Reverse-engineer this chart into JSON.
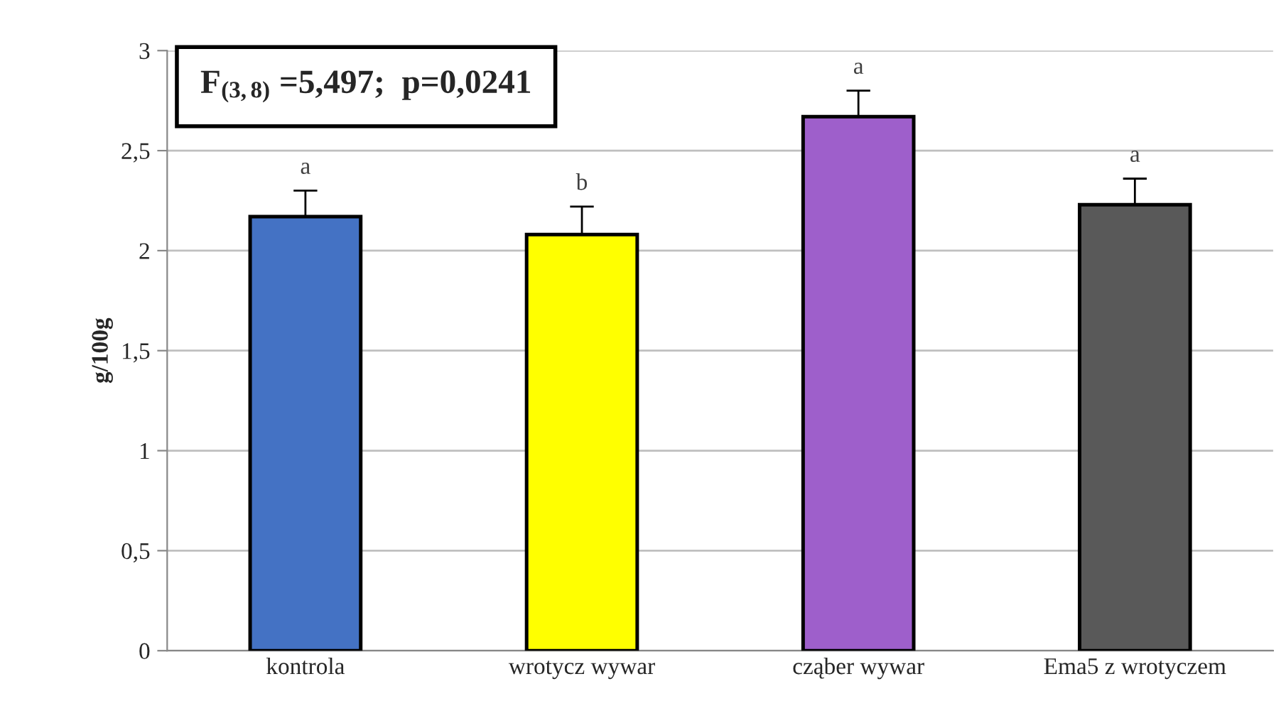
{
  "chart_data": {
    "type": "bar",
    "ylabel": "g/100g",
    "categories": [
      "kontrola",
      "wrotycz wywar",
      "cząber wywar",
      "Ema5 z wrotyczem"
    ],
    "values": [
      2.17,
      2.08,
      2.67,
      2.23
    ],
    "colors": [
      "#4472c4",
      "#ffff00",
      "#9e5fcb",
      "#595959"
    ],
    "errors": [
      [
        2.17,
        2.3
      ],
      [
        2.08,
        2.22
      ],
      [
        2.67,
        2.8
      ],
      [
        2.23,
        2.36
      ]
    ],
    "ylim": [
      0,
      3
    ],
    "yticks": [
      0,
      {
        "value": 0.5,
        "label": "0,5"
      },
      1,
      {
        "value": 1.5,
        "label": "1,5"
      },
      2,
      {
        "value": 2.5,
        "label": "2,5"
      },
      3
    ],
    "grid": "y",
    "annotations": [
      {
        "text": "a",
        "x": "kontrola",
        "y": 2.3
      },
      {
        "text": "b",
        "x": "wrotycz wywar",
        "y": 2.22
      },
      {
        "text": "a",
        "x": "cząber wywar",
        "y": 2.8
      },
      {
        "text": "a",
        "x": "Ema5 z wrotyczem",
        "y": 2.36
      },
      "F$_{(3,8)}$ =5,497;  p=0,0241"
    ]
  }
}
